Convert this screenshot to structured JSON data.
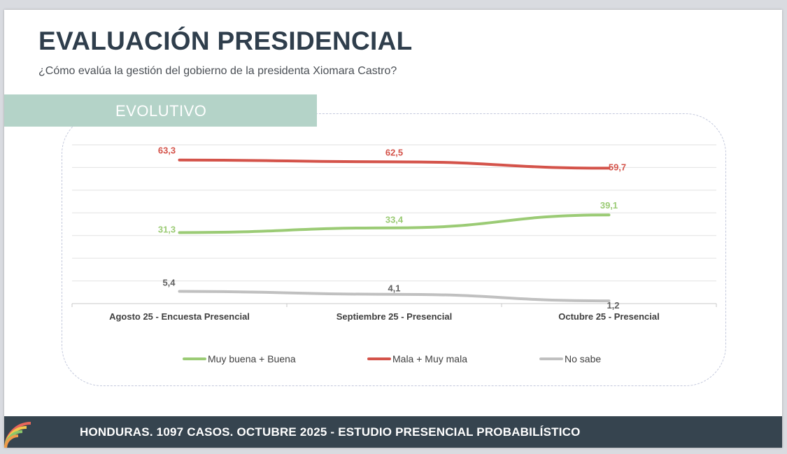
{
  "header": {
    "title": "EVALUACIÓN PRESIDENCIAL",
    "subtitle": "¿Cómo evalúa la gestión del gobierno de la presidenta Xiomara Castro?"
  },
  "section": {
    "tab_label": "EVOLUTIVO"
  },
  "footer": {
    "text": "HONDURAS. 1097 CASOS. OCTUBRE 2025 - ESTUDIO PRESENCIAL PROBABILÍSTICO"
  },
  "colors": {
    "positive": "#9bcb75",
    "negative": "#d4534a",
    "unknown": "#c0c0c0",
    "title": "#2f3e4c",
    "footer_bg": "#36444f",
    "tab_bg": "#b4d3c8"
  },
  "chart_data": {
    "type": "line",
    "categories": [
      "Agosto 25 - Encuesta Presencial",
      "Septiembre 25 - Presencial",
      "Octubre 25 - Presencial"
    ],
    "ylim": [
      0,
      70
    ],
    "grid": true,
    "legend_position": "bottom",
    "series": [
      {
        "name": "Muy buena + Buena",
        "values": [
          31.3,
          33.4,
          39.1
        ],
        "labels": [
          "31,3",
          "33,4",
          "39,1"
        ],
        "color": "#9bcb75"
      },
      {
        "name": "Mala + Muy mala",
        "values": [
          63.3,
          62.5,
          59.7
        ],
        "labels": [
          "63,3",
          "62,5",
          "59,7"
        ],
        "color": "#d4534a"
      },
      {
        "name": "No sabe",
        "values": [
          5.4,
          4.1,
          1.2
        ],
        "labels": [
          "5,4",
          "4,1",
          "1,2"
        ],
        "color": "#c0c0c0"
      }
    ]
  }
}
